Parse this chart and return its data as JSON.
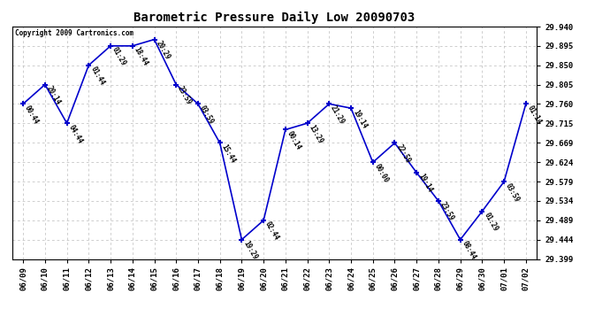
{
  "title": "Barometric Pressure Daily Low 20090703",
  "copyright": "Copyright 2009 Cartronics.com",
  "x_labels": [
    "06/09",
    "06/10",
    "06/11",
    "06/12",
    "06/13",
    "06/14",
    "06/15",
    "06/16",
    "06/17",
    "06/18",
    "06/19",
    "06/20",
    "06/21",
    "06/22",
    "06/23",
    "06/24",
    "06/25",
    "06/26",
    "06/27",
    "06/28",
    "06/29",
    "06/30",
    "07/01",
    "07/02"
  ],
  "y_values": [
    29.76,
    29.805,
    29.715,
    29.85,
    29.895,
    29.895,
    29.91,
    29.805,
    29.76,
    29.669,
    29.444,
    29.489,
    29.7,
    29.715,
    29.76,
    29.75,
    29.624,
    29.669,
    29.6,
    29.534,
    29.444,
    29.51,
    29.579,
    29.76
  ],
  "point_labels": [
    "00:44",
    "20:14",
    "04:44",
    "01:44",
    "01:29",
    "18:44",
    "20:29",
    "23:59",
    "03:59",
    "15:44",
    "19:29",
    "02:44",
    "00:14",
    "13:29",
    "21:29",
    "19:14",
    "00:00",
    "22:59",
    "19:14",
    "23:59",
    "08:44",
    "01:29",
    "03:59",
    "01:14"
  ],
  "line_color": "#0000cc",
  "marker_color": "#0000cc",
  "background_color": "#ffffff",
  "grid_color": "#bbbbbb",
  "y_min": 29.399,
  "y_max": 29.94,
  "y_ticks": [
    29.399,
    29.444,
    29.489,
    29.534,
    29.579,
    29.624,
    29.669,
    29.715,
    29.76,
    29.805,
    29.85,
    29.895,
    29.94
  ]
}
